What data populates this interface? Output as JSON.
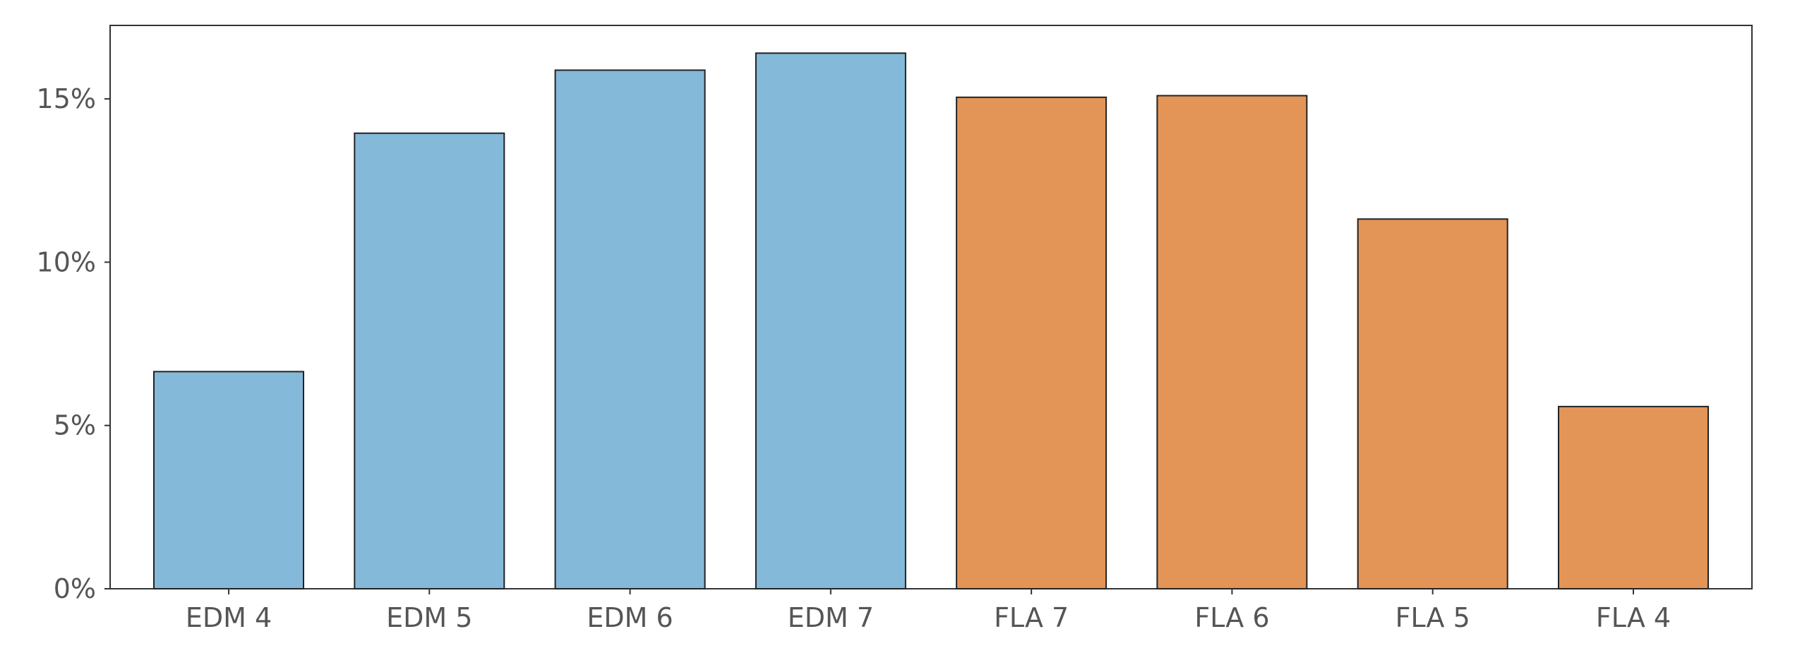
{
  "chart_data": {
    "type": "bar",
    "title": "",
    "xlabel": "",
    "ylabel": "",
    "categories": [
      "EDM 4",
      "EDM 5",
      "EDM 6",
      "EDM 7",
      "FLA 7",
      "FLA 6",
      "FLA 5",
      "FLA 4"
    ],
    "values": [
      6.65,
      13.95,
      15.88,
      16.4,
      15.05,
      15.1,
      11.32,
      5.58
    ],
    "bar_colors": [
      "#85b9da",
      "#85b9da",
      "#85b9da",
      "#85b9da",
      "#e39457",
      "#e39457",
      "#e39457",
      "#e39457"
    ],
    "ylim": [
      0,
      17.25
    ],
    "yticks": [
      0,
      5,
      10,
      15
    ],
    "ytick_labels": [
      "0%",
      "5%",
      "10%",
      "15%"
    ],
    "grid": false,
    "legend": "none"
  }
}
